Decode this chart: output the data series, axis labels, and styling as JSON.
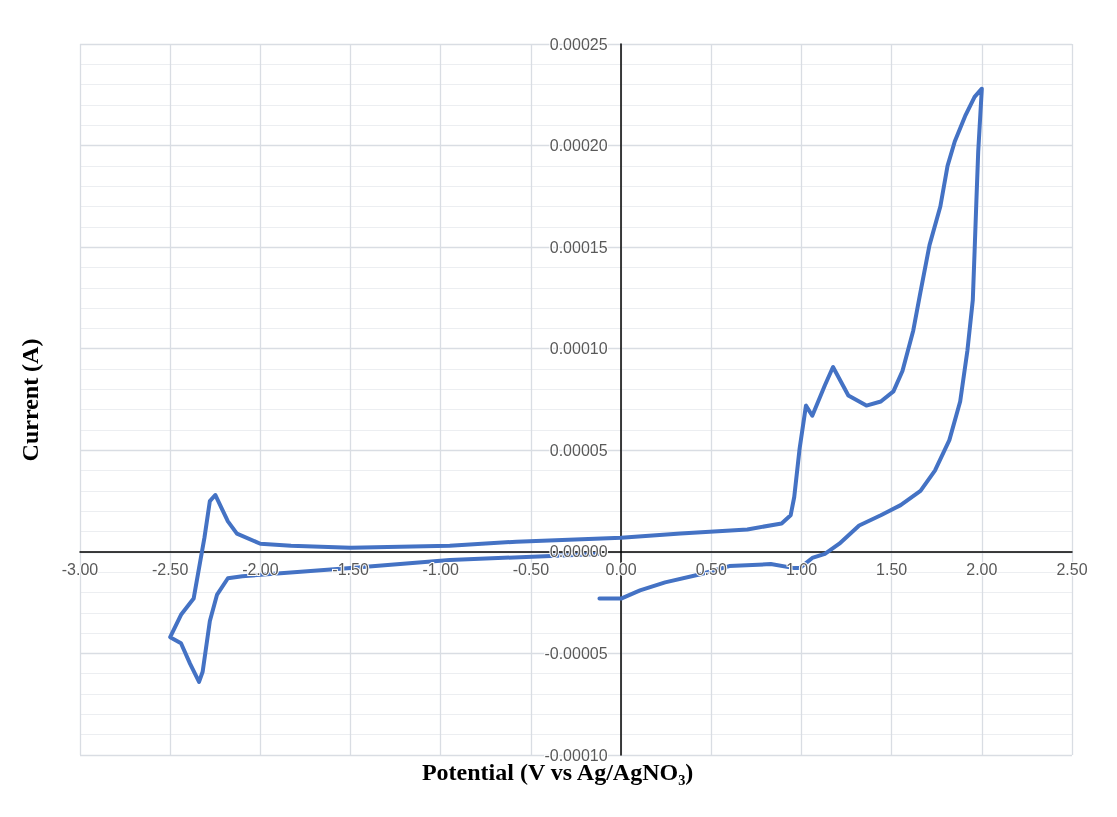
{
  "chart_data": {
    "type": "line",
    "xlabel": "Potential (V vs Ag/AgNO₃)",
    "ylabel": "Current (A)",
    "xlim": [
      -3,
      2.5
    ],
    "xticks": [
      {
        "value": -3,
        "label": "-3.00"
      },
      {
        "value": -2.5,
        "label": "-2.50"
      },
      {
        "value": -2,
        "label": "-2.00"
      },
      {
        "value": -1.5,
        "label": "-1.50"
      },
      {
        "value": -1,
        "label": "-1.00"
      },
      {
        "value": -0.5,
        "label": "-0.50"
      },
      {
        "value": 0,
        "label": "0.00"
      },
      {
        "value": 0.5,
        "label": "0.50"
      },
      {
        "value": 1,
        "label": "1.00"
      },
      {
        "value": 1.5,
        "label": "1.50"
      },
      {
        "value": 2,
        "label": "2.00"
      },
      {
        "value": 2.5,
        "label": "2.50"
      }
    ],
    "ylim": [
      -0.0001,
      0.00025
    ],
    "yticks": [
      {
        "value": -0.0001,
        "label": "-0.00010"
      },
      {
        "value": -5e-05,
        "label": "-0.00005"
      },
      {
        "value": 0,
        "label": "0.00000"
      },
      {
        "value": 5e-05,
        "label": "0.00005"
      },
      {
        "value": 0.0001,
        "label": "0.00010"
      },
      {
        "value": 0.00015,
        "label": "0.00015"
      },
      {
        "value": 0.0002,
        "label": "0.00020"
      },
      {
        "value": 0.00025,
        "label": "0.00025"
      }
    ],
    "grid": true,
    "marker": "none",
    "line_style": "solid",
    "series": [
      {
        "color": "#4472c4",
        "x": [
          -0.12,
          0,
          0.105,
          0.244,
          0.44,
          0.6,
          0.83,
          0.96,
          0.99,
          1.06,
          1.13,
          1.21,
          1.32,
          1.44,
          1.55,
          1.66,
          1.74,
          1.82,
          1.88,
          1.92,
          1.95,
          1.96,
          1.97,
          1.98,
          2.0,
          1.96,
          1.91,
          1.85,
          1.81,
          1.77,
          1.71,
          1.66,
          1.62,
          1.56,
          1.51,
          1.44,
          1.36,
          1.26,
          1.175,
          1.13,
          1.06,
          1.025,
          0.99,
          0.96,
          0.94,
          0.89,
          0.7,
          0.33,
          0,
          -0.58,
          -0.95,
          -1.5,
          -1.83,
          -2.0,
          -2.13,
          -2.18,
          -2.25,
          -2.28,
          -2.31,
          -2.33,
          -2.37,
          -2.44,
          -2.5,
          -2.44,
          -2.39,
          -2.34,
          -2.32,
          -2.28,
          -2.24,
          -2.18,
          -2.1,
          -1.5,
          -0.95,
          -0.39,
          -0.13
        ],
        "values": [
          -2.3e-05,
          -2.3e-05,
          -1.9e-05,
          -1.5e-05,
          -1.1e-05,
          -7e-06,
          -6e-06,
          -8e-06,
          -8e-06,
          -3e-06,
          -1e-06,
          4e-06,
          1.3e-05,
          1.8e-05,
          2.3e-05,
          3e-05,
          4e-05,
          5.5e-05,
          7.4e-05,
          9.9e-05,
          0.000124,
          0.000148,
          0.000173,
          0.000197,
          0.000228,
          0.000224,
          0.000215,
          0.000202,
          0.00019,
          0.00017,
          0.000151,
          0.000128,
          0.000109,
          8.9e-05,
          7.9e-05,
          7.4e-05,
          7.2e-05,
          7.7e-05,
          9.1e-05,
          8.2e-05,
          6.7e-05,
          7.2e-05,
          5.1e-05,
          2.7e-05,
          1.8e-05,
          1.4e-05,
          1.1e-05,
          9e-06,
          7e-06,
          5e-06,
          3e-06,
          2e-06,
          3e-06,
          4e-06,
          9e-06,
          1.5e-05,
          2.8e-05,
          2.5e-05,
          7e-06,
          -3e-06,
          -2.3e-05,
          -3.1e-05,
          -4.2e-05,
          -4.5e-05,
          -5.5e-05,
          -6.4e-05,
          -5.9e-05,
          -3.4e-05,
          -2.1e-05,
          -1.3e-05,
          -1.2e-05,
          -8e-06,
          -4e-06,
          -2e-06,
          -1e-06
        ]
      }
    ]
  }
}
